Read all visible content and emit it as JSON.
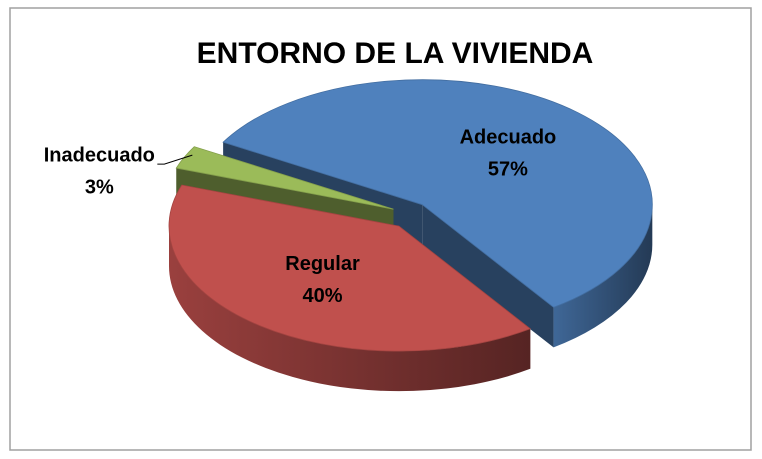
{
  "chart_data": {
    "type": "pie",
    "title": "ENTORNO DE LA VIVIENDA",
    "categories": [
      "Adecuado",
      "Regular",
      "Inadecuado"
    ],
    "values": [
      57,
      40,
      3
    ],
    "value_labels": [
      "57%",
      "40%",
      "3%"
    ],
    "colors": [
      "#4f81bd",
      "#c0504d",
      "#9bbb59"
    ]
  }
}
